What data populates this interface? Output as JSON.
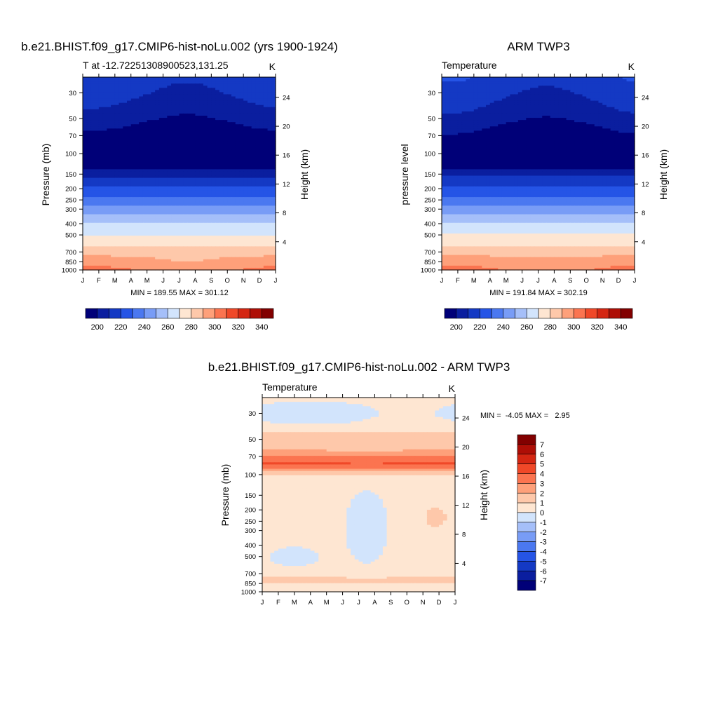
{
  "chart_data": [
    {
      "type": "heatmap",
      "title": "b.e21.BHIST.f09_g17.CMIP6-hist-noLu.002 (yrs 1900-1924)",
      "left_string": "T at -12.72251308900523,131.25",
      "right_string": "K",
      "ylabel": "Pressure (mb)",
      "ylabel_right": "Height (km)",
      "x_ticks": [
        "J",
        "F",
        "M",
        "A",
        "M",
        "J",
        "J",
        "A",
        "S",
        "O",
        "N",
        "D",
        "J"
      ],
      "y_ticks": [
        "30",
        "50",
        "70",
        "100",
        "150",
        "200",
        "250",
        "300",
        "400",
        "500",
        "700",
        "850",
        "1000"
      ],
      "y_ticks_right": [
        "24",
        "20",
        "16",
        "12",
        "8",
        "4"
      ],
      "stats": "MIN = 189.55 MAX = 301.12",
      "colorbar_labels": [
        "200",
        "220",
        "240",
        "260",
        "280",
        "300",
        "320",
        "340"
      ],
      "contour_levels": [
        200,
        210,
        220,
        230,
        240,
        250,
        260,
        270,
        280,
        290,
        300,
        310,
        320,
        330,
        340
      ],
      "colors": [
        "#000078",
        "#0a1e9f",
        "#1439c4",
        "#2554e6",
        "#4b78f0",
        "#789cf6",
        "#a5bff9",
        "#d2e4fc",
        "#fee6d2",
        "#fec8aa",
        "#fea07a",
        "#fb7450",
        "#f04828",
        "#d42612",
        "#ae0e06",
        "#820000"
      ]
    },
    {
      "type": "heatmap",
      "title": "ARM TWP3",
      "left_string": "Temperature",
      "right_string": "K",
      "ylabel": "pressure level",
      "ylabel_right": "Height (km)",
      "x_ticks": [
        "J",
        "F",
        "M",
        "A",
        "M",
        "J",
        "J",
        "A",
        "S",
        "O",
        "N",
        "D",
        "J"
      ],
      "y_ticks": [
        "30",
        "50",
        "70",
        "100",
        "150",
        "200",
        "250",
        "300",
        "400",
        "500",
        "700",
        "850",
        "1000"
      ],
      "y_ticks_right": [
        "24",
        "20",
        "16",
        "12",
        "8",
        "4"
      ],
      "stats": "MIN = 191.84 MAX = 302.19",
      "colorbar_labels": [
        "200",
        "220",
        "240",
        "260",
        "280",
        "300",
        "320",
        "340"
      ],
      "contour_levels": [
        200,
        210,
        220,
        230,
        240,
        250,
        260,
        270,
        280,
        290,
        300,
        310,
        320,
        330,
        340
      ],
      "colors": [
        "#000078",
        "#0a1e9f",
        "#1439c4",
        "#2554e6",
        "#4b78f0",
        "#789cf6",
        "#a5bff9",
        "#d2e4fc",
        "#fee6d2",
        "#fec8aa",
        "#fea07a",
        "#fb7450",
        "#f04828",
        "#d42612",
        "#ae0e06",
        "#820000"
      ]
    },
    {
      "type": "heatmap",
      "title": "b.e21.BHIST.f09_g17.CMIP6-hist-noLu.002 - ARM TWP3",
      "left_string": "Temperature",
      "right_string": "K",
      "ylabel": "Pressure (mb)",
      "ylabel_right": "Height (km)",
      "x_ticks": [
        "J",
        "F",
        "M",
        "A",
        "M",
        "J",
        "J",
        "A",
        "S",
        "O",
        "N",
        "D",
        "J"
      ],
      "y_ticks": [
        "30",
        "50",
        "70",
        "100",
        "150",
        "200",
        "250",
        "300",
        "400",
        "500",
        "700",
        "850",
        "1000"
      ],
      "y_ticks_right": [
        "24",
        "20",
        "16",
        "12",
        "8",
        "4"
      ],
      "stats": "MIN =  -4.05 MAX =   2.95",
      "colorbar_labels": [
        "7",
        "6",
        "5",
        "4",
        "3",
        "2",
        "1",
        "0",
        "-1",
        "-2",
        "-3",
        "-4",
        "-5",
        "-6",
        "-7"
      ],
      "contour_levels": [
        -7,
        -6,
        -5,
        -4,
        -3,
        -2,
        -1,
        0,
        1,
        2,
        3,
        4,
        5,
        6,
        7
      ],
      "colors": [
        "#820000",
        "#ae0e06",
        "#d42612",
        "#f04828",
        "#fb7450",
        "#fea07a",
        "#fec8aa",
        "#fee6d2",
        "#d2e4fc",
        "#a5bff9",
        "#789cf6",
        "#4b78f0",
        "#2554e6",
        "#1439c4",
        "#0a1e9f",
        "#000078"
      ]
    }
  ]
}
